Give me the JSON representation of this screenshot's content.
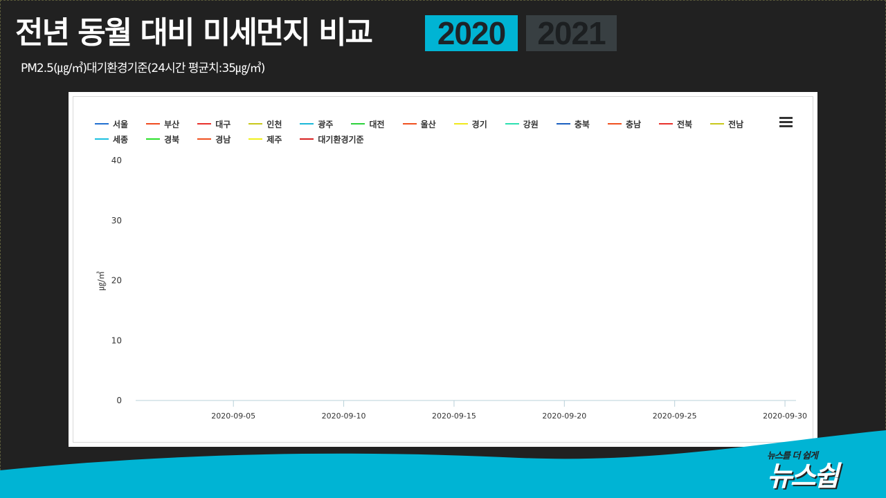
{
  "header": {
    "title": "전년 동월 대비 미세먼지 비교",
    "year_active": "2020",
    "year_inactive": "2021",
    "subtitle": "PM2.5(㎍/㎥)대기환경기준(24시간 평균치:35㎍/㎥)"
  },
  "logo": {
    "tagline": "뉴스를 더 쉽게",
    "name": "뉴스쉽"
  },
  "colors": {
    "accent": "#00b4d4",
    "background": "#212121"
  },
  "chart_data": {
    "type": "line",
    "title": "",
    "xlabel": "",
    "ylabel": "㎍/㎥",
    "xlim": [
      "2020-09-01",
      "2020-09-30"
    ],
    "ylim": [
      0,
      40
    ],
    "yticks": [
      0,
      10,
      20,
      30,
      40
    ],
    "xticks": [
      "2020-09-05",
      "2020-09-10",
      "2020-09-15",
      "2020-09-20",
      "2020-09-25",
      "2020-09-30"
    ],
    "grid": false,
    "legend_position": "top",
    "series": [
      {
        "name": "서울",
        "color": "#1f6fd1",
        "values": []
      },
      {
        "name": "부산",
        "color": "#f04a1e",
        "values": []
      },
      {
        "name": "대구",
        "color": "#e8302a",
        "values": []
      },
      {
        "name": "인천",
        "color": "#c8c81a",
        "values": []
      },
      {
        "name": "광주",
        "color": "#1ab8d8",
        "values": []
      },
      {
        "name": "대전",
        "color": "#2ad23a",
        "values": []
      },
      {
        "name": "울산",
        "color": "#f0501e",
        "values": []
      },
      {
        "name": "경기",
        "color": "#f0e81a",
        "values": []
      },
      {
        "name": "강원",
        "color": "#2ae0b0",
        "values": []
      },
      {
        "name": "충북",
        "color": "#1a5fc0",
        "values": []
      },
      {
        "name": "충남",
        "color": "#f0501e",
        "values": []
      },
      {
        "name": "전북",
        "color": "#e8302a",
        "values": []
      },
      {
        "name": "전남",
        "color": "#c8c81a",
        "values": []
      },
      {
        "name": "세종",
        "color": "#1ac0e0",
        "values": []
      },
      {
        "name": "경북",
        "color": "#2ae02a",
        "values": []
      },
      {
        "name": "경남",
        "color": "#f0501e",
        "values": []
      },
      {
        "name": "제주",
        "color": "#f0f01a",
        "values": []
      },
      {
        "name": "대기환경기준",
        "color": "#d82020",
        "values": []
      }
    ]
  }
}
